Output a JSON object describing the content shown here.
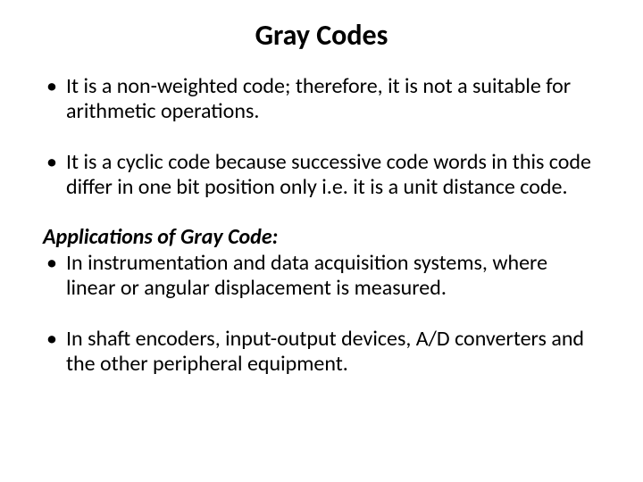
{
  "title": {
    "text": "Gray Codes",
    "fontsize": 32,
    "weight": 700
  },
  "body_fontsize": 24,
  "bullets": [
    " It is a non-weighted code; therefore, it is not a suitable for arithmetic operations.",
    "It is a cyclic code because successive code words in this code differ in one bit position only i.e. it is a unit distance code."
  ],
  "section_label": "Applications of Gray Code:",
  "applications": [
    " In instrumentation and data acquisition systems, where linear or angular displacement is measured.",
    "In shaft encoders, input-output devices, A/D converters and the other peripheral equipment."
  ],
  "colors": {
    "text": "#000000",
    "background": "#ffffff"
  }
}
